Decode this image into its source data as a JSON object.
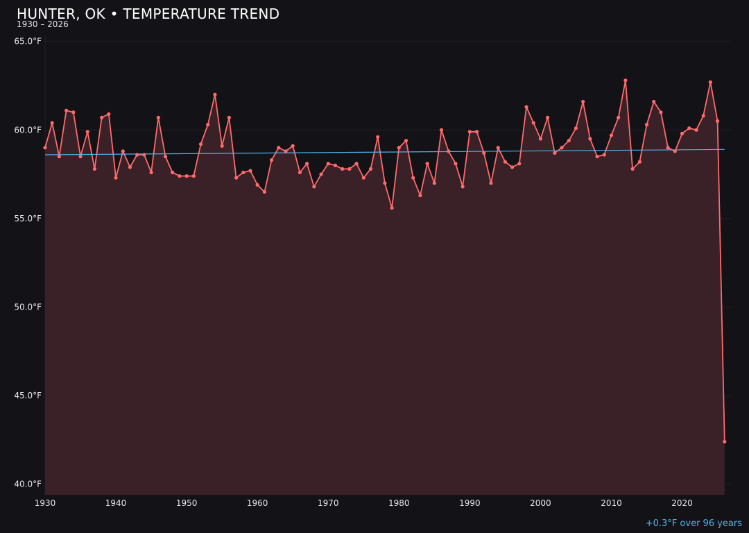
{
  "chart_data": {
    "type": "area",
    "title": "HUNTER, OK • TEMPERATURE TREND",
    "subtitle": "1930 – 2026",
    "annotation": "+0.3°F over 96 years",
    "xlabel": "",
    "ylabel": "",
    "xlim": [
      1930,
      2027
    ],
    "ylim": [
      39.4,
      65.3
    ],
    "x_ticks": [
      1930,
      1940,
      1950,
      1960,
      1970,
      1980,
      1990,
      2000,
      2010,
      2020
    ],
    "y_ticks": [
      "40.0°F",
      "45.0°F",
      "50.0°F",
      "55.0°F",
      "60.0°F",
      "65.0°F"
    ],
    "y_tick_values": [
      40,
      45,
      50,
      55,
      60,
      65
    ],
    "grid": true,
    "colors": {
      "line": "#ff6b6b",
      "fill": "#3a2027",
      "trend": "#4fb3ea",
      "background": "#131217"
    },
    "x": [
      1930,
      1931,
      1932,
      1933,
      1934,
      1935,
      1936,
      1937,
      1938,
      1939,
      1940,
      1941,
      1942,
      1943,
      1944,
      1945,
      1946,
      1947,
      1948,
      1949,
      1950,
      1951,
      1952,
      1953,
      1954,
      1955,
      1956,
      1957,
      1958,
      1959,
      1960,
      1961,
      1962,
      1963,
      1964,
      1965,
      1966,
      1967,
      1968,
      1969,
      1970,
      1971,
      1972,
      1973,
      1974,
      1975,
      1976,
      1977,
      1978,
      1979,
      1980,
      1981,
      1982,
      1983,
      1984,
      1985,
      1986,
      1987,
      1988,
      1989,
      1990,
      1991,
      1992,
      1993,
      1994,
      1995,
      1996,
      1997,
      1998,
      1999,
      2000,
      2001,
      2002,
      2003,
      2004,
      2005,
      2006,
      2007,
      2008,
      2009,
      2010,
      2011,
      2012,
      2013,
      2014,
      2015,
      2016,
      2017,
      2018,
      2019,
      2020,
      2021,
      2022,
      2023,
      2024,
      2025,
      2026
    ],
    "values": [
      59.0,
      60.4,
      58.5,
      61.1,
      61.0,
      58.5,
      59.9,
      57.8,
      60.7,
      60.9,
      57.3,
      58.8,
      57.9,
      58.6,
      58.6,
      57.6,
      60.7,
      58.5,
      57.6,
      57.4,
      57.4,
      57.4,
      59.2,
      60.3,
      62.0,
      59.1,
      60.7,
      57.3,
      57.6,
      57.7,
      56.9,
      56.5,
      58.3,
      59.0,
      58.8,
      59.1,
      57.6,
      58.1,
      56.8,
      57.5,
      58.1,
      58.0,
      57.8,
      57.8,
      58.1,
      57.3,
      57.8,
      59.6,
      57.0,
      55.6,
      59.0,
      59.4,
      57.3,
      56.3,
      58.1,
      57.0,
      60.0,
      58.8,
      58.1,
      56.8,
      59.9,
      59.9,
      58.7,
      57.0,
      59.0,
      58.2,
      57.9,
      58.1,
      61.3,
      60.4,
      59.5,
      60.7,
      58.7,
      59.0,
      59.4,
      60.1,
      61.6,
      59.5,
      58.5,
      58.6,
      59.7,
      60.7,
      62.8,
      57.8,
      58.2,
      60.3,
      61.6,
      61.0,
      59.0,
      58.8,
      59.8,
      60.1,
      60.0,
      60.8,
      62.7,
      60.5,
      42.4
    ],
    "trend": {
      "x": [
        1930,
        2026
      ],
      "values": [
        58.6,
        58.9
      ]
    }
  }
}
